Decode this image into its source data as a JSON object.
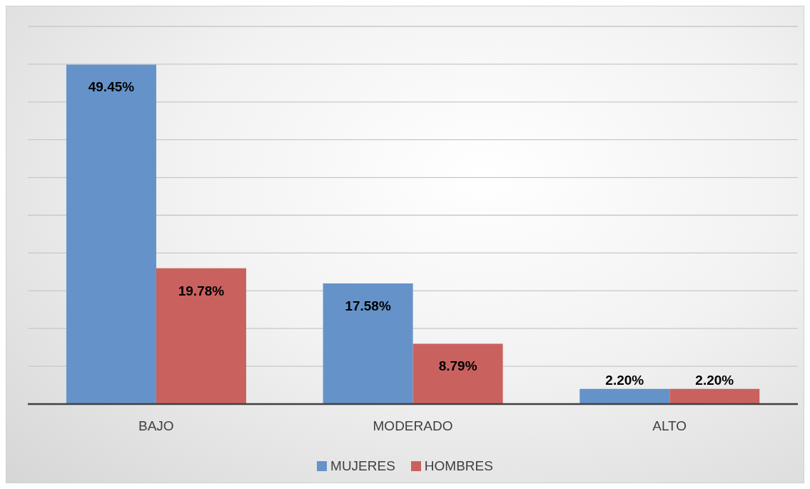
{
  "chart_data": {
    "type": "bar",
    "categories": [
      "BAJO",
      "MODERADO",
      "ALTO"
    ],
    "series": [
      {
        "name": "MUJERES",
        "color": "#6593c9",
        "values": [
          49.45,
          17.58,
          2.2
        ],
        "value_labels": [
          "49.45%",
          "17.58%",
          "2.20%"
        ]
      },
      {
        "name": "HOMBRES",
        "color": "#c9625f",
        "values": [
          19.78,
          8.79,
          2.2
        ],
        "value_labels": [
          "19.78%",
          "8.79%",
          "2.20%"
        ]
      }
    ],
    "ylim": [
      0,
      55
    ],
    "yticks": [
      0,
      {
        "value": 5.5,
        "label": null
      },
      {
        "value": 11,
        "label": null
      },
      {
        "value": 16.5,
        "label": null
      },
      {
        "value": 22,
        "label": null
      },
      {
        "value": 27.5,
        "label": null
      },
      {
        "value": 33,
        "label": null
      },
      {
        "value": 38.5,
        "label": null
      },
      {
        "value": 44,
        "label": null
      },
      {
        "value": 49.5,
        "label": null
      },
      {
        "value": 55,
        "label": null
      }
    ],
    "tick_labels": "x",
    "grid": "y",
    "legend": "bottom"
  }
}
